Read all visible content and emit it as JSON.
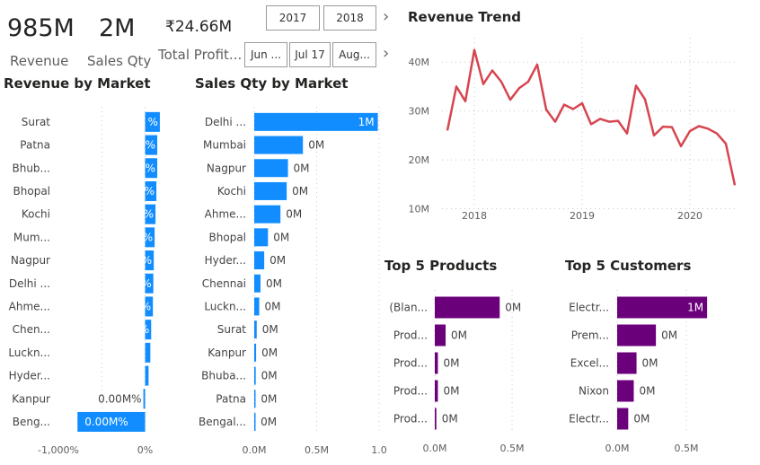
{
  "kpis": {
    "revenue": {
      "value": "985M",
      "label": "Revenue"
    },
    "sales_qty": {
      "value": "2M",
      "label": "Sales Qty"
    },
    "profit": {
      "value": "₹24.66M",
      "label": "Total Profit..."
    }
  },
  "slicers": {
    "years": [
      "2017",
      "2018"
    ],
    "months": [
      "Jun ...",
      "Jul 17",
      "Aug..."
    ]
  },
  "colors": {
    "blue": "#118dff",
    "red": "#d64550",
    "purple": "#6b007b"
  },
  "chart_data": [
    {
      "type": "bar",
      "orientation": "horizontal",
      "title": "Revenue by Market",
      "categories": [
        "Surat",
        "Patna",
        "Bhub...",
        "Bhopal",
        "Kochi",
        "Mum...",
        "Nagpur",
        "Delhi ...",
        "Ahme...",
        "Chen...",
        "Luckn...",
        "Hyder...",
        "Kanpur",
        "Beng..."
      ],
      "values": [
        170,
        140,
        140,
        130,
        120,
        110,
        100,
        95,
        90,
        70,
        60,
        40,
        -20,
        -780
      ],
      "value_labels": [
        "%",
        "%",
        "%",
        "%",
        "0%",
        "0%",
        "0%",
        "0%",
        "0%",
        "0%",
        "",
        "",
        "0.00M%",
        "0.00M%"
      ],
      "xlim": [
        -1000,
        150
      ],
      "xticks": [
        "-1,000%",
        "0%"
      ],
      "xtick_values": [
        -1000,
        0
      ]
    },
    {
      "type": "bar",
      "orientation": "horizontal",
      "title": "Sales Qty by Market",
      "categories": [
        "Delhi ...",
        "Mumbai",
        "Nagpur",
        "Kochi",
        "Ahme...",
        "Bhopal",
        "Hyder...",
        "Chennai",
        "Luckn...",
        "Surat",
        "Kanpur",
        "Bhuba...",
        "Patna",
        "Bengal..."
      ],
      "values": [
        0.99,
        0.39,
        0.27,
        0.26,
        0.21,
        0.11,
        0.08,
        0.05,
        0.04,
        0.02,
        0.015,
        0.012,
        0.01,
        0.008
      ],
      "value_labels": [
        "1M",
        "0M",
        "0M",
        "0M",
        "0M",
        "0M",
        "0M",
        "0M",
        "0M",
        "0M",
        "0M",
        "0M",
        "0M",
        "0M"
      ],
      "xlim": [
        0,
        1.0
      ],
      "xticks": [
        "0.0M",
        "0.5M",
        "1.0"
      ],
      "xtick_values": [
        0,
        0.5,
        1.0
      ]
    },
    {
      "type": "line",
      "title": "Revenue Trend",
      "x": [
        "2017-10",
        "2017-11",
        "2017-12",
        "2018-01",
        "2018-02",
        "2018-03",
        "2018-04",
        "2018-05",
        "2018-06",
        "2018-07",
        "2018-08",
        "2018-09",
        "2018-10",
        "2018-11",
        "2018-12",
        "2019-01",
        "2019-02",
        "2019-03",
        "2019-04",
        "2019-05",
        "2019-06",
        "2019-07",
        "2019-08",
        "2019-09",
        "2019-10",
        "2019-11",
        "2019-12",
        "2020-01",
        "2020-02",
        "2020-03",
        "2020-04",
        "2020-05",
        "2020-06"
      ],
      "values": [
        26,
        35,
        32,
        42.5,
        35.5,
        38.3,
        36,
        32.3,
        34.7,
        36,
        39.5,
        30.3,
        27.8,
        31.3,
        30.4,
        31.6,
        27.3,
        28.4,
        27.8,
        28,
        25.4,
        35.2,
        32.4,
        25,
        26.8,
        26.7,
        22.8,
        25.9,
        26.9,
        26.4,
        25.4,
        23.3,
        14.8
      ],
      "xticks": [
        "2018",
        "2019",
        "2020"
      ],
      "yticks": [
        "10M",
        "20M",
        "30M",
        "40M"
      ],
      "ytick_values": [
        10,
        20,
        30,
        40
      ],
      "ylim": [
        9,
        45
      ],
      "ylabel_unit": "M"
    },
    {
      "type": "bar",
      "orientation": "horizontal",
      "title": "Top 5 Products",
      "categories": [
        "(Blan...",
        "Prod...",
        "Prod...",
        "Prod...",
        "Prod..."
      ],
      "values": [
        0.42,
        0.07,
        0.02,
        0.02,
        0.01
      ],
      "value_labels": [
        "0M",
        "0M",
        "0M",
        "0M",
        "0M"
      ],
      "xlim": [
        0,
        1.0
      ],
      "xticks": [
        "0.0M",
        "0.5M"
      ],
      "xtick_values": [
        0,
        0.5
      ]
    },
    {
      "type": "bar",
      "orientation": "horizontal",
      "title": "Top 5 Customers",
      "categories": [
        "Electr...",
        "Prem...",
        "Excel...",
        "Nixon",
        "Electr..."
      ],
      "values": [
        0.65,
        0.28,
        0.14,
        0.12,
        0.08
      ],
      "value_labels": [
        "1M",
        "0M",
        "0M",
        "0M",
        "0M"
      ],
      "xlim": [
        0,
        1.0
      ],
      "xticks": [
        "0.0M",
        "0.5M"
      ],
      "xtick_values": [
        0,
        0.5
      ]
    }
  ]
}
